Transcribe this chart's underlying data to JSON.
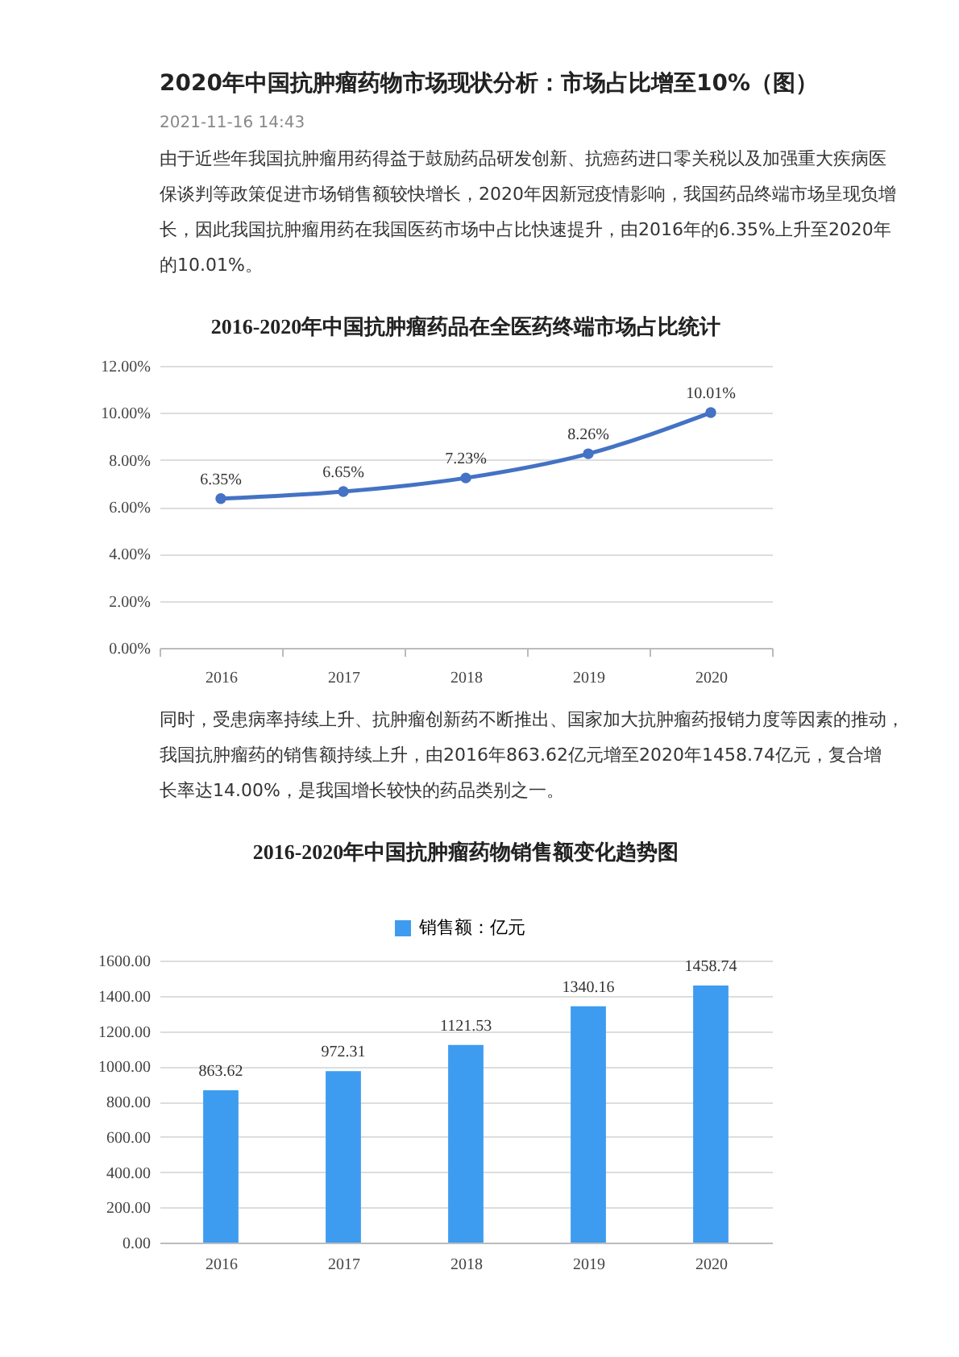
{
  "chart_data": [
    {
      "type": "other",
      "title": "2020年中国抗肿瘤药物市场现状分析：市场占比增至10%（图）",
      "subtitle": "2021-11-16 14:43",
      "annotations": [
        "由于近些年我国抗肿瘤用药得益于鼓励药品研发创新、抗癌药进口零关税以及加强重大疾病医保谈判等政策促进市场销售额较快增长，2020年因新冠疫情影响，我国药品终端市场呈现负增长，因此我国抗肿瘤用药在我国医药市场中占比快速提升，由2016年的6.35%上升至2020年的10.01%。"
      ]
    },
    {
      "type": "line",
      "title": "2016-2020年中国抗肿瘤药品在全医药终端市场占比统计",
      "categories": [
        "2016",
        "2017",
        "2018",
        "2019",
        "2020"
      ],
      "series": [
        {
          "color": "#4472c4",
          "values": [
            6.35,
            6.65,
            7.23,
            8.26,
            10.01
          ],
          "value_labels": [
            "6.35%",
            "6.65%",
            "7.23%",
            "8.26%",
            "10.01%"
          ]
        }
      ],
      "ylim": [
        0,
        12
      ],
      "yticks": [
        {
          "value": 0,
          "label": "0.00%"
        },
        {
          "value": 2,
          "label": "2.00%"
        },
        {
          "value": 4,
          "label": "4.00%"
        },
        {
          "value": 6,
          "label": "6.00%"
        },
        {
          "value": 8,
          "label": "8.00%"
        },
        {
          "value": 10,
          "label": "10.00%"
        },
        {
          "value": 12,
          "label": "12.00%"
        }
      ],
      "grid": "y",
      "marker": "circle"
    },
    {
      "type": "other",
      "annotations": [
        "同时，受患病率持续上升、抗肿瘤创新药不断推出、国家加大抗肿瘤药报销力度等因素的推动，我国抗肿瘤药的销售额持续上升，由2016年863.62亿元增至2020年1458.74亿元，复合增长率达14.00%，是我国增长较快的药品类别之一。"
      ]
    },
    {
      "type": "bar",
      "title": "2016-2020年中国抗肿瘤药物销售额变化趋势图",
      "categories": [
        "2016",
        "2017",
        "2018",
        "2019",
        "2020"
      ],
      "series": [
        {
          "name": "销售额：亿元",
          "color": "#3d9cf0",
          "values": [
            863.62,
            972.31,
            1121.53,
            1340.16,
            1458.74
          ]
        }
      ],
      "ylim": [
        0,
        1600
      ],
      "yticks": [
        {
          "value": 0,
          "label": "0.00"
        },
        {
          "value": 200,
          "label": "200.00"
        },
        {
          "value": 400,
          "label": "400.00"
        },
        {
          "value": 600,
          "label": "600.00"
        },
        {
          "value": 800,
          "label": "800.00"
        },
        {
          "value": 1000,
          "label": "1000.00"
        },
        {
          "value": 1200,
          "label": "1200.00"
        },
        {
          "value": 1400,
          "label": "1400.00"
        },
        {
          "value": 1600,
          "label": "1600.00"
        }
      ],
      "grid": "y",
      "legend": "top",
      "data_labels": true
    }
  ]
}
